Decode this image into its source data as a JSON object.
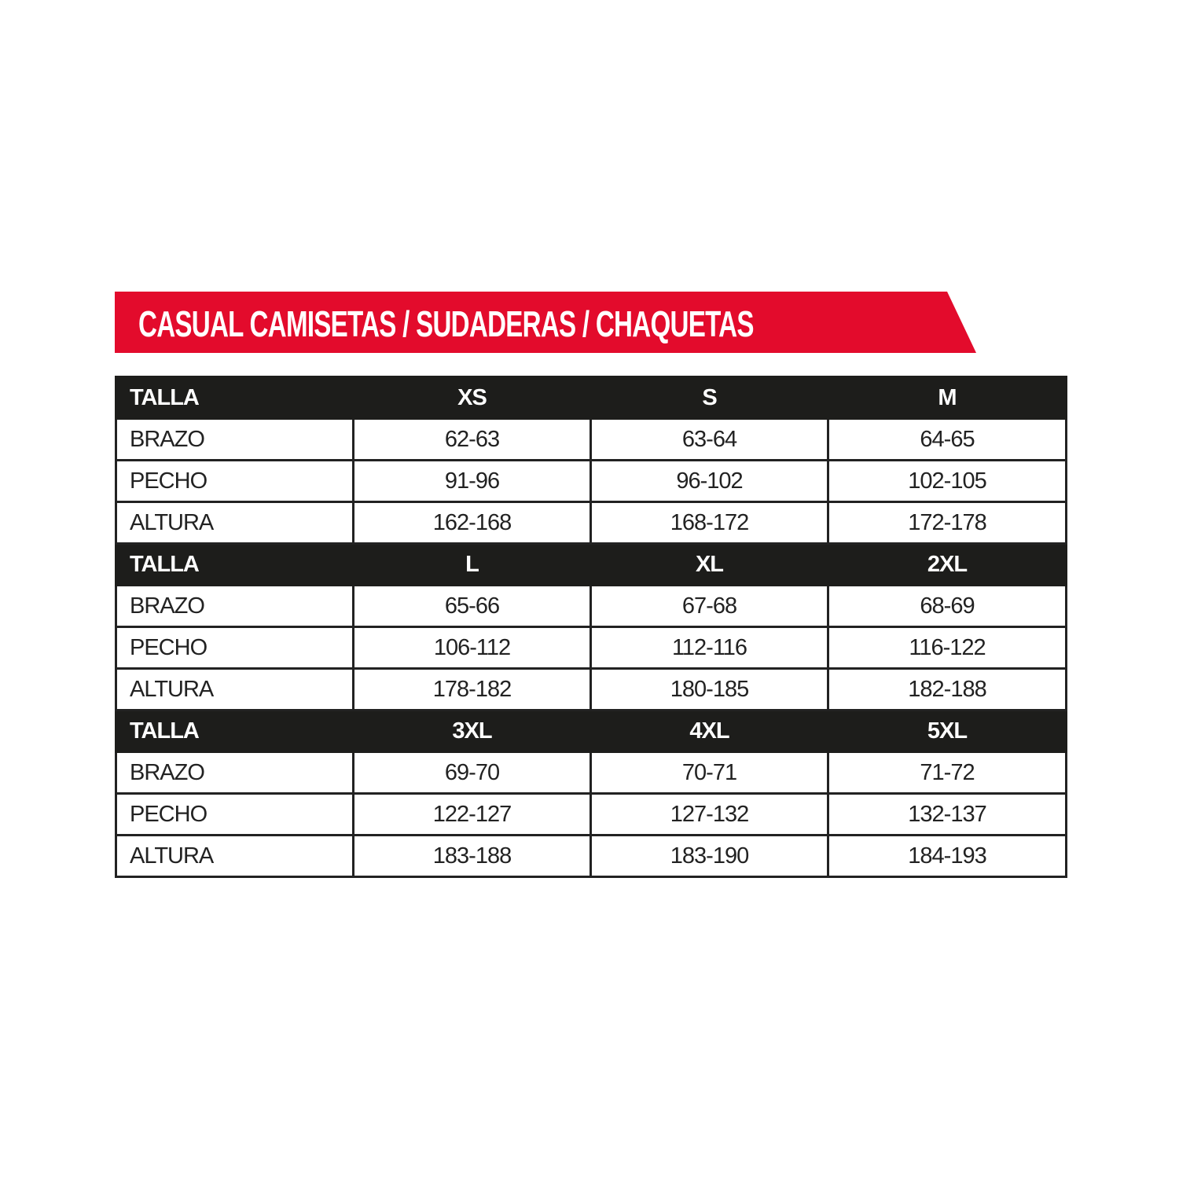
{
  "title": "CASUAL CAMISETAS / SUDADERAS / CHAQUETAS",
  "colors": {
    "banner": "#e30b2c",
    "header_row": "#1d1d1b"
  },
  "blocks": [
    {
      "header": {
        "label": "TALLA",
        "sizes": [
          "XS",
          "S",
          "M"
        ]
      },
      "rows": [
        {
          "label": "BRAZO",
          "values": [
            "62-63",
            "63-64",
            "64-65"
          ]
        },
        {
          "label": "PECHO",
          "values": [
            "91-96",
            "96-102",
            "102-105"
          ]
        },
        {
          "label": "ALTURA",
          "values": [
            "162-168",
            "168-172",
            "172-178"
          ]
        }
      ]
    },
    {
      "header": {
        "label": "TALLA",
        "sizes": [
          "L",
          "XL",
          "2XL"
        ]
      },
      "rows": [
        {
          "label": "BRAZO",
          "values": [
            "65-66",
            "67-68",
            "68-69"
          ]
        },
        {
          "label": "PECHO",
          "values": [
            "106-112",
            "112-116",
            "116-122"
          ]
        },
        {
          "label": "ALTURA",
          "values": [
            "178-182",
            "180-185",
            "182-188"
          ]
        }
      ]
    },
    {
      "header": {
        "label": "TALLA",
        "sizes": [
          "3XL",
          "4XL",
          "5XL"
        ]
      },
      "rows": [
        {
          "label": "BRAZO",
          "values": [
            "69-70",
            "70-71",
            "71-72"
          ]
        },
        {
          "label": "PECHO",
          "values": [
            "122-127",
            "127-132",
            "132-137"
          ]
        },
        {
          "label": "ALTURA",
          "values": [
            "183-188",
            "183-190",
            "184-193"
          ]
        }
      ]
    }
  ]
}
